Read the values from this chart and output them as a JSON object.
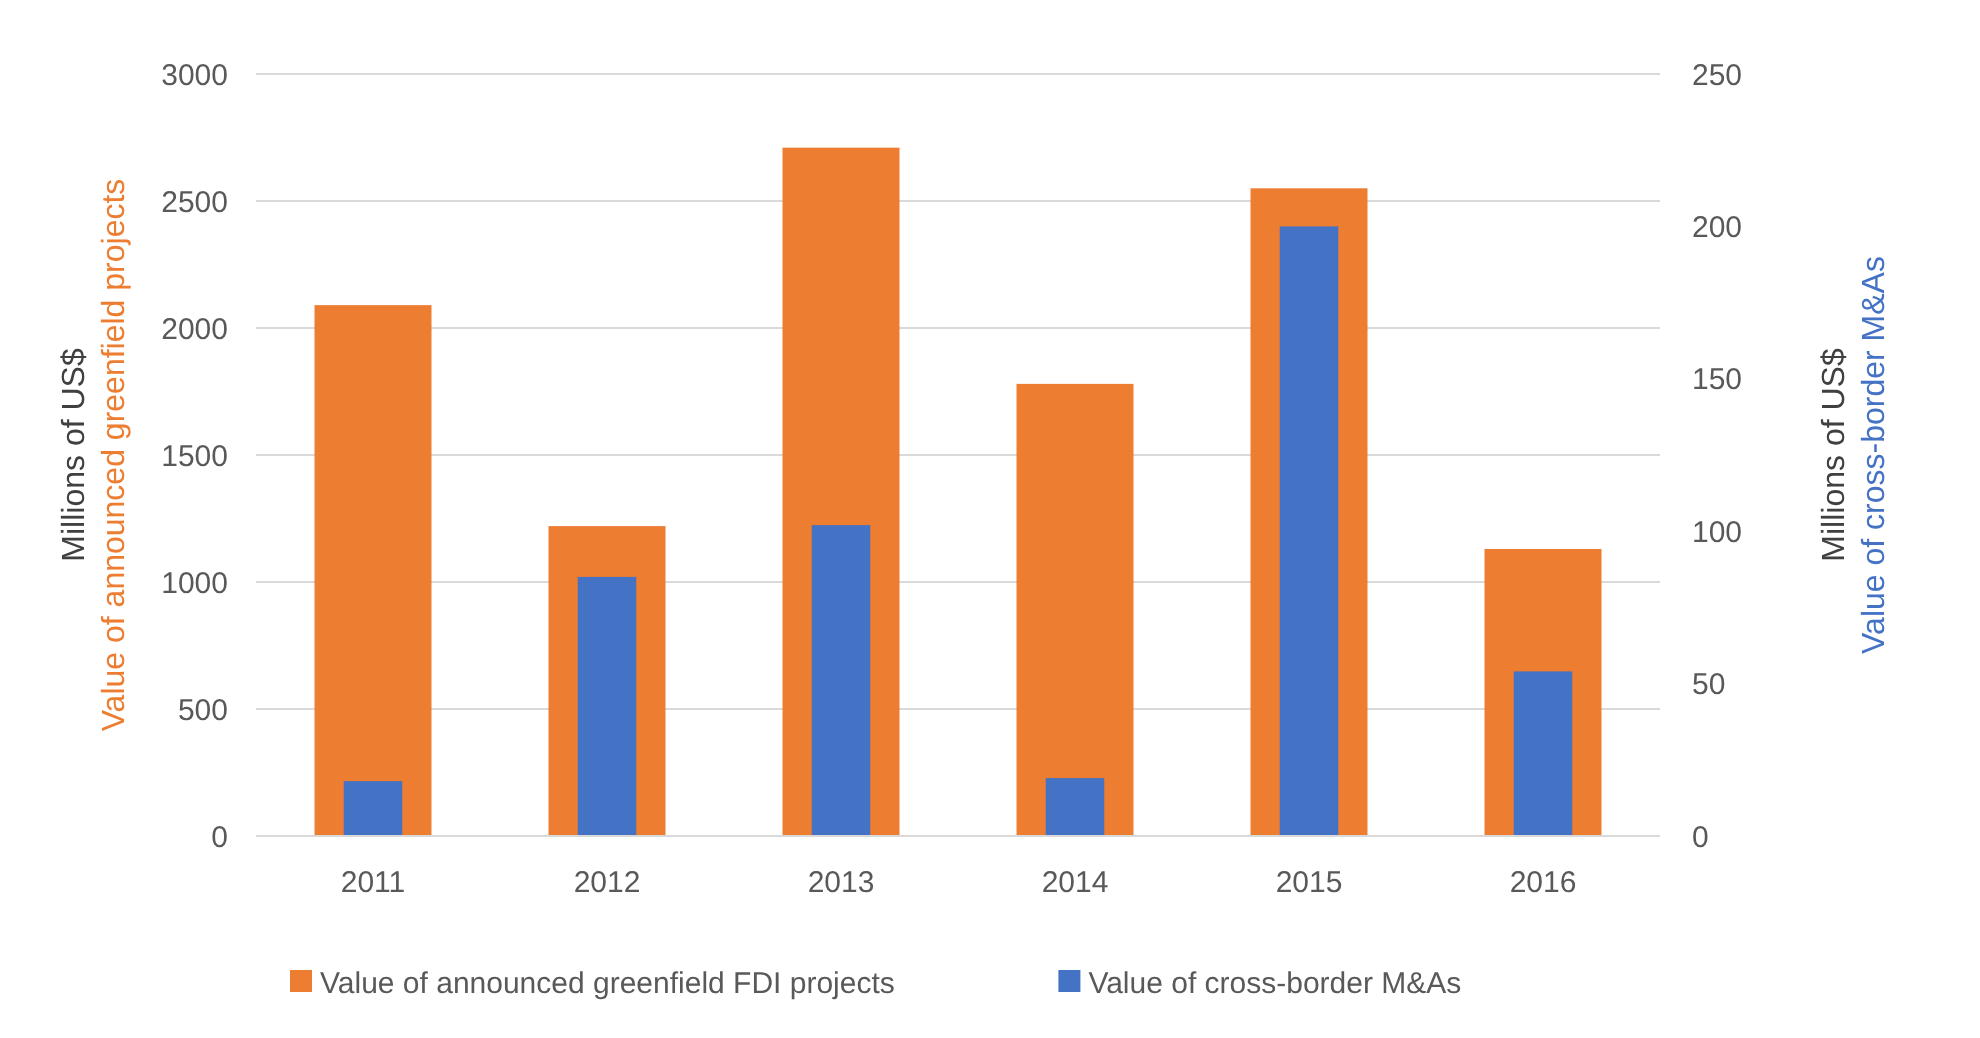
{
  "chart_data": {
    "type": "bar",
    "categories": [
      "2011",
      "2012",
      "2013",
      "2014",
      "2015",
      "2016"
    ],
    "series": [
      {
        "name": "Value of announced greenfield FDI projects",
        "color": "#ed7d31",
        "values": [
          2090,
          1220,
          2710,
          1780,
          2550,
          1130
        ]
      },
      {
        "name": "Value of cross-border M&As",
        "color": "#4472c4",
        "axis": "y2",
        "values": [
          18,
          85,
          102,
          19,
          200,
          54
        ]
      }
    ],
    "ylabel": "Millions of US$\nValue of announced greenfield projects",
    "y2label": "Millions of US$\nValue of cross-border M&As",
    "ylim": [
      0,
      3000
    ],
    "yticks": [
      0,
      500,
      1000,
      1500,
      2000,
      2500,
      3000
    ],
    "y2lim": [
      0,
      250
    ],
    "y2ticks": [
      0,
      50,
      100,
      150,
      200,
      250
    ],
    "grid": "y",
    "legend": "bottom"
  }
}
